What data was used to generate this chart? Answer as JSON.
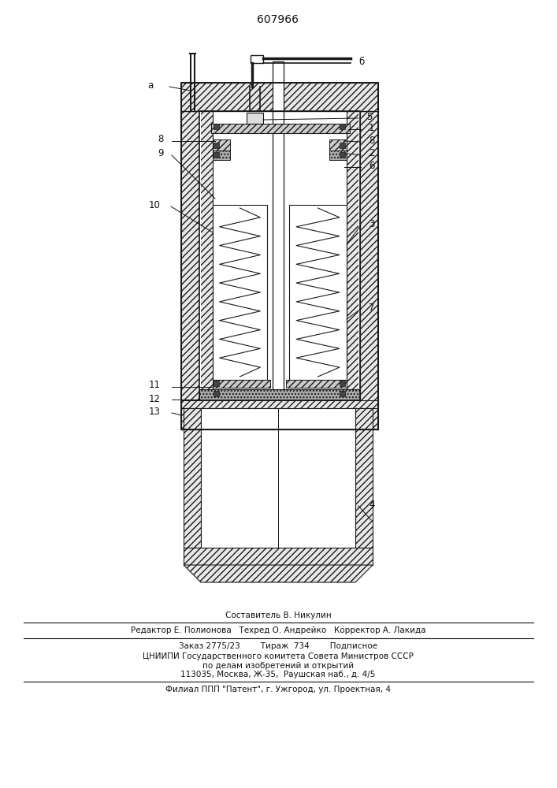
{
  "patent_number": "607966",
  "bg_color": "#ffffff",
  "line_color": "#1a1a1a",
  "fig_width": 7.07,
  "fig_height": 10.0,
  "footer_lines": [
    "Составитель В. Никулин",
    "Редактор Е. Полионова   Техред О. Андрейко   Корректор А. Лакида",
    "Заказ 2775/23        Тираж  734        Подписное",
    "ЦНИИПИ Государственного комитета Совета Министров СССР",
    "по делам изобретений и открытий",
    "113035, Москва, Ж-35,  Раушская наб., д. 4/5",
    "Филиал ППП \"Патент\", г. Ужгород, ул. Проектная, 4"
  ]
}
